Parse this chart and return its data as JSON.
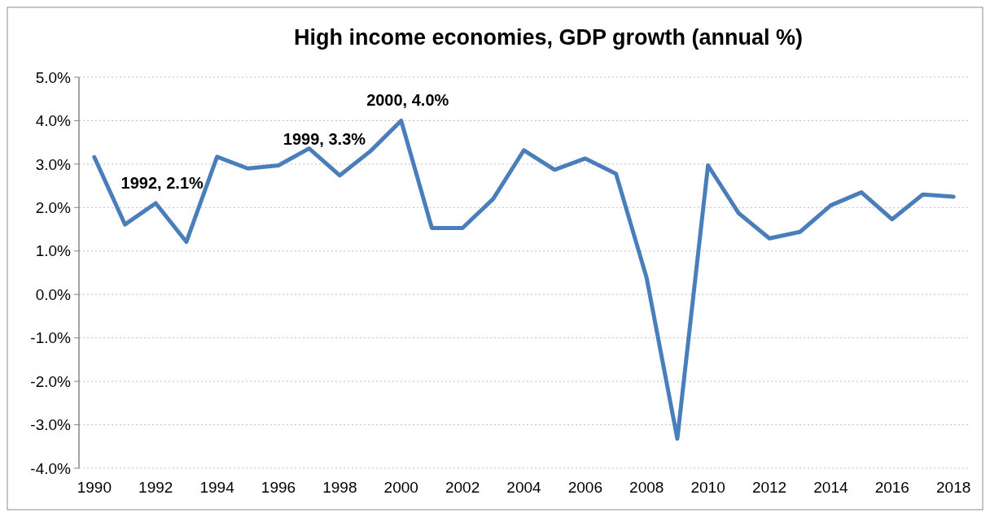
{
  "chart_data": {
    "type": "line",
    "title": "High income economies, GDP growth (annual %)",
    "x": [
      1990,
      1991,
      1992,
      1993,
      1994,
      1995,
      1996,
      1997,
      1998,
      1999,
      2000,
      2001,
      2002,
      2003,
      2004,
      2005,
      2006,
      2007,
      2008,
      2009,
      2010,
      2011,
      2012,
      2013,
      2014,
      2015,
      2016,
      2017,
      2018
    ],
    "series": [
      {
        "color": "#4a7ebb",
        "values": [
          3.16,
          1.61,
          2.1,
          1.21,
          3.17,
          2.9,
          2.97,
          3.36,
          2.74,
          3.3,
          4.0,
          1.53,
          1.53,
          2.2,
          3.32,
          2.87,
          3.13,
          2.78,
          0.38,
          -3.32,
          2.97,
          1.87,
          1.29,
          1.44,
          2.05,
          2.35,
          1.73,
          2.3,
          2.25
        ]
      }
    ],
    "xlim": [
      1989.5,
      2018.5
    ],
    "xticks": [
      1990,
      1992,
      1994,
      1996,
      1998,
      2000,
      2002,
      2004,
      2006,
      2008,
      2010,
      2012,
      2014,
      2016,
      2018
    ],
    "ylim": [
      -4,
      5
    ],
    "yticks": [
      {
        "value": -4,
        "label": "-4.0%"
      },
      {
        "value": -3,
        "label": "-3.0%"
      },
      {
        "value": -2,
        "label": "-2.0%"
      },
      {
        "value": -1,
        "label": "-1.0%"
      },
      {
        "value": 0,
        "label": "0.0%"
      },
      {
        "value": 1,
        "label": "1.0%"
      },
      {
        "value": 2,
        "label": "2.0%"
      },
      {
        "value": 3,
        "label": "3.0%"
      },
      {
        "value": 4,
        "label": "4.0%"
      },
      {
        "value": 5,
        "label": "5.0%"
      }
    ],
    "grid": "y",
    "marker": "none",
    "line_style": "solid",
    "annotations": [
      {
        "text": "1992, 2.1%",
        "x": 1992,
        "y": 2.1
      },
      {
        "text": "1999, 3.3%",
        "x": 1999,
        "y": 3.3
      },
      {
        "text": "2000, 4.0%",
        "x": 2000,
        "y": 4.0
      }
    ]
  }
}
